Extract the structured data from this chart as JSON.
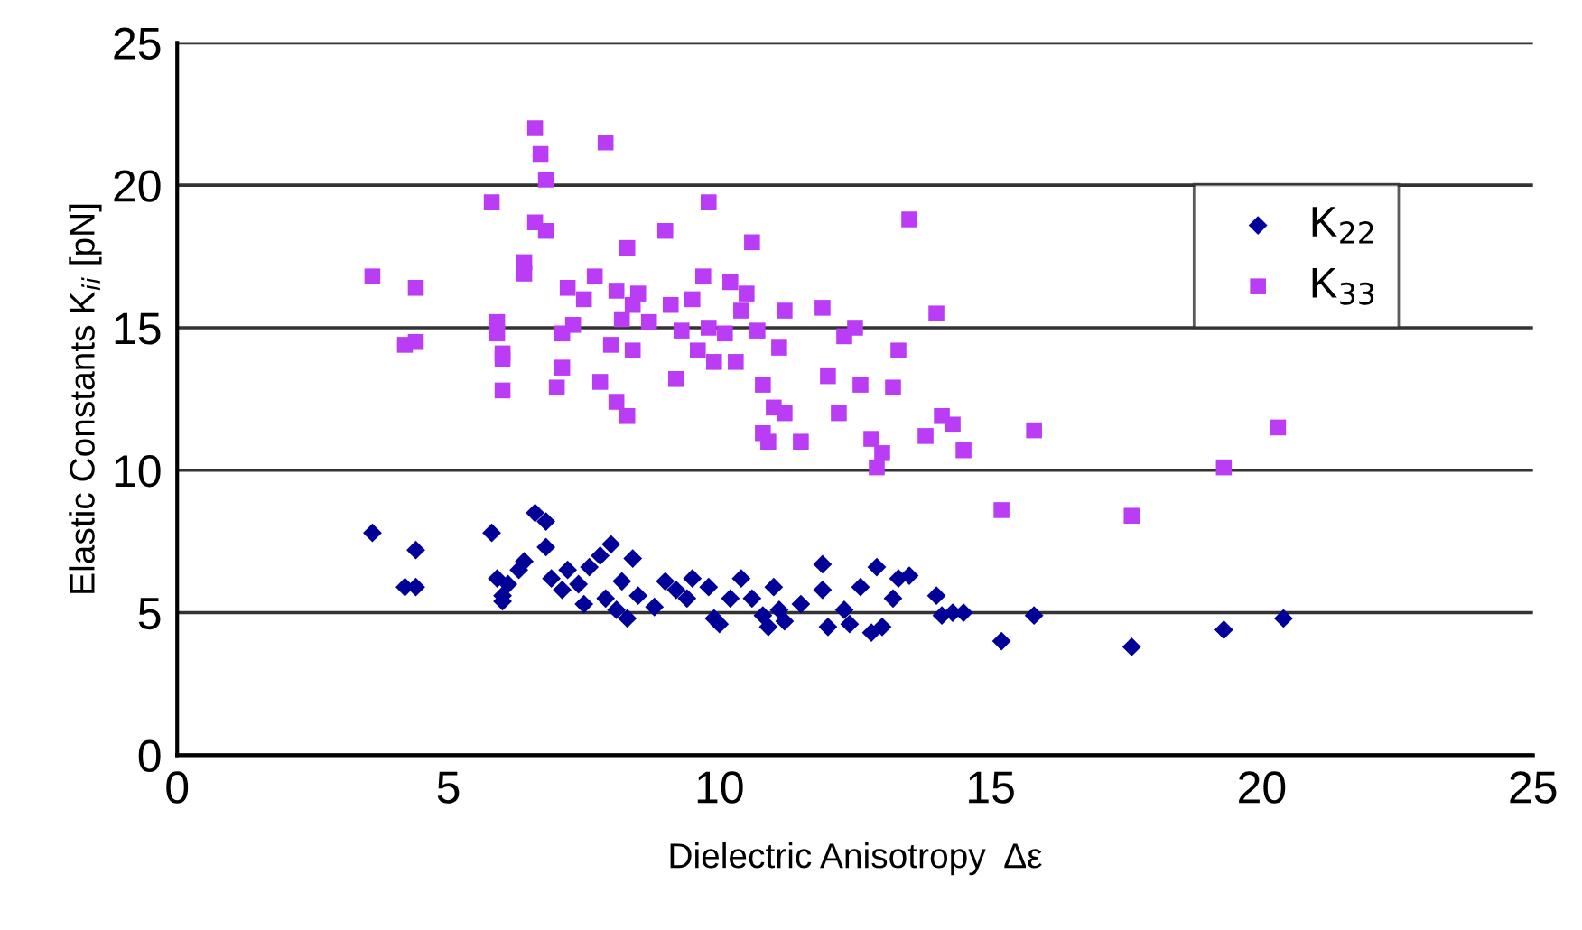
{
  "chart_data": {
    "type": "scatter",
    "xlabel": "Dielectric Anisotropy  Δε",
    "ylabel": "Elastic Constants K$_{ii}$ [pN]",
    "xlim": [
      0,
      25
    ],
    "ylim": [
      0,
      25
    ],
    "xticks": [
      0,
      5,
      10,
      15,
      20,
      25
    ],
    "yticks": [
      0,
      5,
      10,
      15,
      20,
      25
    ],
    "grid": "y",
    "legend": "top right",
    "series": [
      {
        "name": "K$_{22}$",
        "color": "#000099",
        "marker": "diamond",
        "x": [
          3.6,
          4.2,
          4.4,
          4.4,
          5.8,
          5.9,
          6.0,
          6.0,
          6.1,
          6.3,
          6.4,
          6.6,
          6.8,
          6.8,
          6.9,
          7.1,
          7.2,
          7.4,
          7.5,
          7.6,
          7.8,
          7.9,
          8.0,
          8.1,
          8.2,
          8.3,
          8.4,
          8.5,
          8.8,
          9.0,
          9.2,
          9.4,
          9.5,
          9.8,
          9.9,
          10.0,
          10.2,
          10.4,
          10.6,
          10.8,
          10.9,
          11.0,
          11.1,
          11.2,
          11.5,
          11.9,
          11.9,
          12.0,
          12.3,
          12.4,
          12.6,
          12.8,
          12.9,
          13.0,
          13.2,
          13.3,
          13.5,
          14.0,
          14.1,
          14.3,
          14.5,
          15.2,
          15.8,
          17.6,
          19.3,
          20.4
        ],
        "values": [
          7.8,
          5.9,
          5.9,
          7.2,
          7.8,
          6.2,
          5.6,
          5.4,
          6.0,
          6.5,
          6.8,
          8.5,
          8.2,
          7.3,
          6.2,
          5.8,
          6.5,
          6.0,
          5.3,
          6.6,
          7.0,
          5.5,
          7.4,
          5.1,
          6.1,
          4.8,
          6.9,
          5.6,
          5.2,
          6.1,
          5.8,
          5.5,
          6.2,
          5.9,
          4.8,
          4.6,
          5.5,
          6.2,
          5.5,
          4.9,
          4.5,
          5.9,
          5.1,
          4.7,
          5.3,
          6.7,
          5.8,
          4.5,
          5.1,
          4.6,
          5.9,
          4.3,
          6.6,
          4.5,
          5.5,
          6.2,
          6.3,
          5.6,
          4.9,
          5.0,
          5.0,
          4.0,
          4.9,
          3.8,
          4.4,
          4.8
        ]
      },
      {
        "name": "K$_{33}$",
        "color": "#bb3cf5",
        "marker": "square",
        "x": [
          3.6,
          4.2,
          4.4,
          4.4,
          5.8,
          5.9,
          6.0,
          5.9,
          6.0,
          6.0,
          6.4,
          6.4,
          6.6,
          6.7,
          6.8,
          6.6,
          6.8,
          7.0,
          7.1,
          7.2,
          7.3,
          7.1,
          7.5,
          7.7,
          7.8,
          7.9,
          8.0,
          8.1,
          8.1,
          8.3,
          8.2,
          8.4,
          8.3,
          8.4,
          8.5,
          8.7,
          9.0,
          9.1,
          9.2,
          9.3,
          9.5,
          9.6,
          9.8,
          9.7,
          9.8,
          9.9,
          10.1,
          10.2,
          10.3,
          10.4,
          10.6,
          10.5,
          10.7,
          10.8,
          10.8,
          10.9,
          11.0,
          11.1,
          11.2,
          11.2,
          11.5,
          11.9,
          12.0,
          12.2,
          12.3,
          12.5,
          12.6,
          12.8,
          12.9,
          13.0,
          13.2,
          13.3,
          13.5,
          13.8,
          14.0,
          14.1,
          14.3,
          14.5,
          15.2,
          15.8,
          17.6,
          19.3,
          20.3
        ],
        "values": [
          16.8,
          14.4,
          14.5,
          16.4,
          19.4,
          15.2,
          14.1,
          14.8,
          12.8,
          13.9,
          16.9,
          17.3,
          22.0,
          21.1,
          20.2,
          18.7,
          18.4,
          12.9,
          14.8,
          16.4,
          15.1,
          13.6,
          16.0,
          16.8,
          13.1,
          21.5,
          14.4,
          16.3,
          12.4,
          11.9,
          15.3,
          15.8,
          17.8,
          14.2,
          16.2,
          15.2,
          18.4,
          15.8,
          13.2,
          14.9,
          16.0,
          14.2,
          19.4,
          16.8,
          15.0,
          13.8,
          14.8,
          16.6,
          13.8,
          15.6,
          18.0,
          16.2,
          14.9,
          13.0,
          11.3,
          11.0,
          12.2,
          14.3,
          15.6,
          12.0,
          11.0,
          15.7,
          13.3,
          12.0,
          14.7,
          15.0,
          13.0,
          11.1,
          10.1,
          10.6,
          12.9,
          14.2,
          18.8,
          11.2,
          15.5,
          11.9,
          11.6,
          10.7,
          8.6,
          11.4,
          8.4,
          10.1,
          11.5
        ]
      }
    ]
  }
}
